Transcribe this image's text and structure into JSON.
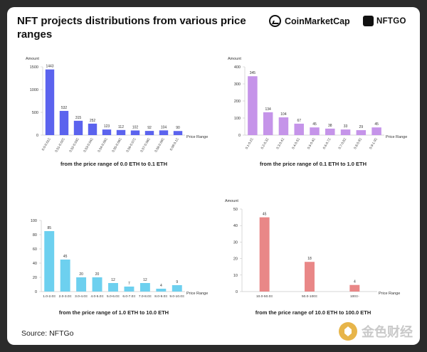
{
  "header": {
    "title": "NFT projects distributions from various price ranges",
    "brand_primary": "CoinMarketCap",
    "brand_secondary": "NFTGO"
  },
  "source": "Source: NFTGo",
  "watermark": "金色财经",
  "colors": {
    "chart1": "#5b63ee",
    "chart2": "#c594e9",
    "chart3": "#6dd0ef",
    "chart4": "#e98787",
    "axis": "#c8c8c8",
    "text": "#333333"
  },
  "chart_data": [
    {
      "type": "bar",
      "ylabel": "Amount",
      "xlabel": "Price Range",
      "caption": "from the price range of 0.0 ETH to 0.1 ETH",
      "ylim": [
        0,
        1500
      ],
      "yticks": [
        0,
        500,
        1000,
        1500
      ],
      "categories": [
        "0.0-0.01Ξ",
        "0.01-0.02Ξ",
        "0.02-0.03Ξ",
        "0.03-0.04Ξ",
        "0.04-0.05Ξ",
        "0.05-0.06Ξ",
        "0.06-0.07Ξ",
        "0.07-0.08Ξ",
        "0.08-0.09Ξ",
        "0.09-0.1Ξ"
      ],
      "values": [
        1443,
        532,
        315,
        252,
        123,
        112,
        102,
        92,
        104,
        90
      ]
    },
    {
      "type": "bar",
      "ylabel": "Amount",
      "xlabel": "Price Range",
      "caption": "from the price range of 0.1 ETH to 1.0 ETH",
      "ylim": [
        0,
        400
      ],
      "yticks": [
        0,
        100,
        200,
        300,
        400
      ],
      "categories": [
        "0.1-0.2Ξ",
        "0.2-0.3Ξ",
        "0.3-0.4Ξ",
        "0.4-0.5Ξ",
        "0.5-0.6Ξ",
        "0.6-0.7Ξ",
        "0.7-0.8Ξ",
        "0.8-0.9Ξ",
        "0.9-1.0Ξ"
      ],
      "values": [
        345,
        134,
        104,
        67,
        45,
        38,
        33,
        29,
        45
      ]
    },
    {
      "type": "bar",
      "ylabel": "",
      "xlabel": "Price Range",
      "caption": "from the price range of 1.0 ETH to 10.0 ETH",
      "ylim": [
        0,
        100
      ],
      "yticks": [
        0,
        20,
        40,
        60,
        80,
        100
      ],
      "categories": [
        "1.0-2.0Ξ",
        "2.0-3.0Ξ",
        "3.0-4.0Ξ",
        "4.0-5.0Ξ",
        "5.0-6.0Ξ",
        "6.0-7.0Ξ",
        "7.0-8.0Ξ",
        "8.0-9.0Ξ",
        "9.0-10.0Ξ"
      ],
      "values": [
        85,
        45,
        20,
        20,
        12,
        7,
        12,
        4,
        9
      ]
    },
    {
      "type": "bar",
      "ylabel": "Amount",
      "xlabel": "Price Range",
      "caption": "from the price range of 10.0 ETH to 100.0 ETH",
      "ylim": [
        0,
        50
      ],
      "yticks": [
        0,
        10,
        20,
        30,
        40,
        50
      ],
      "categories": [
        "10.0-50.0Ξ",
        "50.0-100Ξ",
        "100Ξ-"
      ],
      "values": [
        45,
        18,
        4
      ]
    }
  ]
}
